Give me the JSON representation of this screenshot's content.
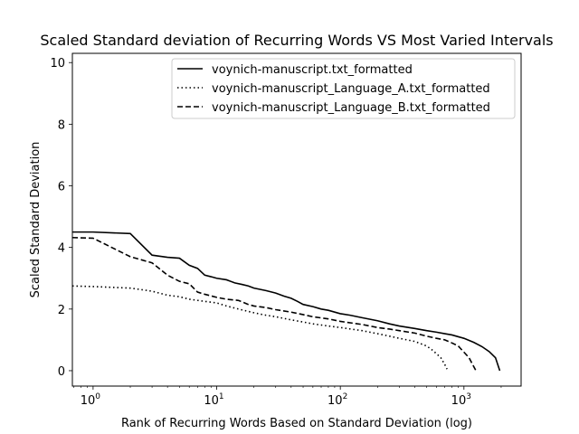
{
  "chart_data": {
    "type": "line",
    "title": "Scaled Standard deviation of Recurring Words VS Most Varied Intervals",
    "xlabel": "Rank of Recurring Words Based on Standard Deviation (log)",
    "ylabel": "Scaled Standard Deviation",
    "xscale": "log",
    "xlim": [
      0.68,
      2900
    ],
    "ylim": [
      -0.5,
      10.3
    ],
    "xticks": [
      {
        "value": 1,
        "label": "10",
        "exp": "0"
      },
      {
        "value": 10,
        "label": "10",
        "exp": "1"
      },
      {
        "value": 100,
        "label": "10",
        "exp": "2"
      },
      {
        "value": 1000,
        "label": "10",
        "exp": "3"
      }
    ],
    "yticks": [
      0,
      2,
      4,
      6,
      8,
      10
    ],
    "grid": false,
    "legend_position": "top-right",
    "series": [
      {
        "name": "voynich-manuscript.txt_formatted",
        "style": "solid",
        "x": [
          0.68,
          1,
          2,
          3,
          4,
          5,
          6,
          7,
          8,
          9,
          10,
          12,
          14,
          16,
          18,
          20,
          25,
          30,
          35,
          40,
          45,
          50,
          60,
          70,
          80,
          100,
          120,
          150,
          200,
          250,
          300,
          400,
          500,
          600,
          700,
          800,
          1000,
          1200,
          1400,
          1600,
          1800,
          1950
        ],
        "y": [
          4.5,
          4.5,
          4.45,
          3.75,
          3.68,
          3.65,
          3.42,
          3.32,
          3.1,
          3.05,
          3.0,
          2.95,
          2.85,
          2.8,
          2.75,
          2.68,
          2.6,
          2.52,
          2.42,
          2.35,
          2.25,
          2.15,
          2.08,
          2.0,
          1.96,
          1.85,
          1.8,
          1.72,
          1.62,
          1.52,
          1.45,
          1.37,
          1.3,
          1.25,
          1.2,
          1.16,
          1.05,
          0.92,
          0.78,
          0.62,
          0.42,
          0.0
        ]
      },
      {
        "name": "voynich-manuscript_Language_A.txt_formatted",
        "style": "dotted",
        "x": [
          0.68,
          1,
          2,
          3,
          4,
          5,
          6,
          8,
          10,
          12,
          15,
          20,
          25,
          30,
          40,
          50,
          60,
          80,
          100,
          150,
          200,
          250,
          300,
          400,
          500,
          550,
          600,
          650,
          700,
          730
        ],
        "y": [
          2.75,
          2.73,
          2.68,
          2.58,
          2.45,
          2.4,
          2.32,
          2.25,
          2.2,
          2.1,
          2.0,
          1.88,
          1.8,
          1.75,
          1.65,
          1.58,
          1.52,
          1.45,
          1.4,
          1.3,
          1.2,
          1.12,
          1.05,
          0.95,
          0.8,
          0.68,
          0.55,
          0.42,
          0.2,
          0.05
        ]
      },
      {
        "name": "voynich-manuscript_Language_B.txt_formatted",
        "style": "dashed",
        "x": [
          0.68,
          1,
          2,
          3,
          4,
          5,
          6,
          7,
          8,
          10,
          12,
          15,
          18,
          20,
          25,
          30,
          40,
          50,
          60,
          80,
          100,
          150,
          200,
          250,
          300,
          400,
          500,
          600,
          700,
          800,
          900,
          1000,
          1100,
          1250
        ],
        "y": [
          4.32,
          4.3,
          3.7,
          3.5,
          3.1,
          2.9,
          2.82,
          2.55,
          2.48,
          2.38,
          2.32,
          2.28,
          2.15,
          2.1,
          2.05,
          1.98,
          1.9,
          1.82,
          1.75,
          1.68,
          1.6,
          1.5,
          1.4,
          1.35,
          1.3,
          1.22,
          1.12,
          1.05,
          1.0,
          0.9,
          0.8,
          0.6,
          0.42,
          0.0
        ]
      }
    ]
  }
}
